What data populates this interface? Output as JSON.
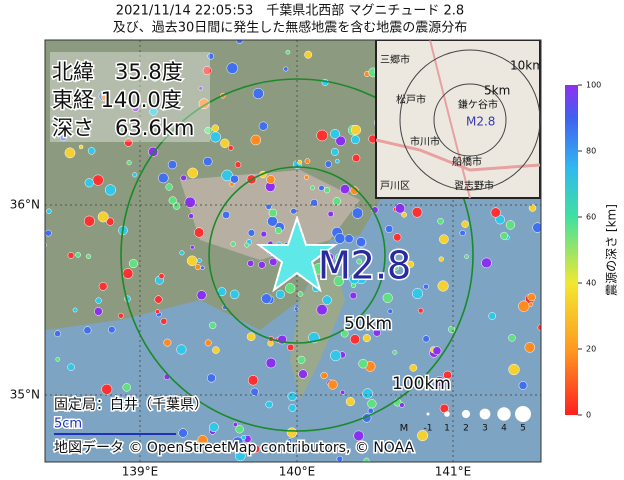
{
  "header": {
    "line1": "2021/11/14 22:05:53　千葉県北西部 マグニチュード 2.8",
    "line2": "及び、過去30日間に発生した無感地震を含む地震の震源分布"
  },
  "info": {
    "lat": "北緯　35.8度",
    "lon": "東経 140.0度",
    "depth": "深さ　63.6km"
  },
  "epicenter_label": "M2.8",
  "rings": [
    "50km",
    "100km"
  ],
  "axes": {
    "lat": [
      "36°N",
      "35°N"
    ],
    "lon": [
      "139°E",
      "140°E",
      "141°E"
    ]
  },
  "inset": {
    "rings": [
      "10km",
      "5km"
    ],
    "label": "M2.8",
    "places": [
      "三郷市",
      "松戸市",
      "鎌ケ谷市",
      "市川市",
      "船橋市",
      "戸川区",
      "習志野市"
    ]
  },
  "station": {
    "label": "固定局：白井（千葉県）",
    "scale": "5cm"
  },
  "magnitude_legend": {
    "title": "M",
    "labels": [
      "-1",
      "1",
      "2",
      "3",
      "4",
      "5"
    ]
  },
  "colorbar": {
    "label": "震源の深さ [km]",
    "lim": [
      0,
      100
    ],
    "ticks": [
      0,
      20,
      40,
      60,
      80,
      100
    ]
  },
  "attribution": "地図データ © OpenStreetMap contributors, © NOAA"
}
